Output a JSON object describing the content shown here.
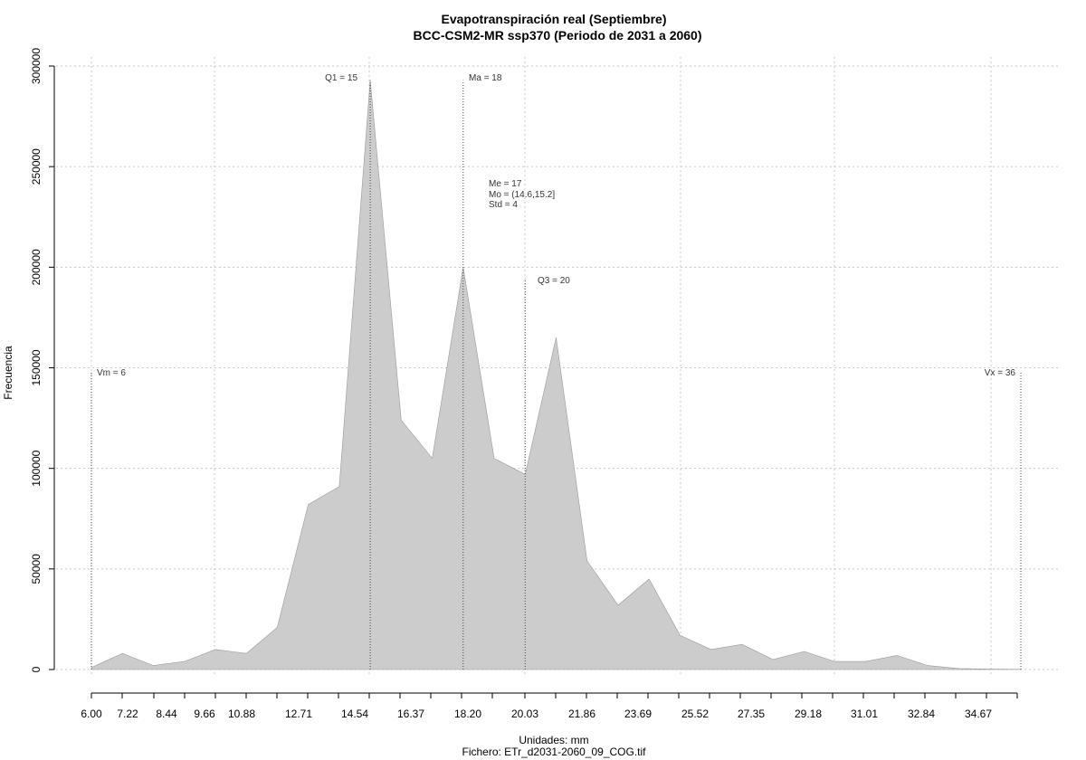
{
  "chart_data": {
    "type": "area",
    "title": "Evapotranspiración real (Septiembre)",
    "subtitle": "BCC-CSM2-MR ssp370 (Periodo de 2031 a 2060)",
    "xlabel": "Unidades: mm",
    "file_label": "Fichero: ETr_d2031-2060_09_COG.tif",
    "ylabel": "Frecuencia",
    "xlim": [
      6.0,
      36.0
    ],
    "ylim": [
      0,
      300000
    ],
    "fill_color": "#cccccc",
    "grid": true,
    "x_ticks": [
      "6.00",
      "7.22",
      "8.44",
      "9.66",
      "10.88",
      "12.71",
      "14.54",
      "16.37",
      "18.20",
      "20.03",
      "21.86",
      "23.69",
      "25.52",
      "27.35",
      "29.18",
      "31.01",
      "32.84",
      "34.67"
    ],
    "y_ticks": [
      "0",
      "50000",
      "100000",
      "150000",
      "200000",
      "250000",
      "300000"
    ],
    "x": [
      6.0,
      7.0,
      8.0,
      9.0,
      10.0,
      11.0,
      12.0,
      13.0,
      14.0,
      15.0,
      16.0,
      17.0,
      18.0,
      19.0,
      20.0,
      21.0,
      22.0,
      23.0,
      24.0,
      25.0,
      26.0,
      27.0,
      28.0,
      29.0,
      30.0,
      31.0,
      32.0,
      33.0,
      34.0,
      35.0,
      36.0
    ],
    "values": [
      1000,
      8000,
      2000,
      4000,
      10000,
      8000,
      21000,
      82000,
      91000,
      293000,
      124000,
      105000,
      200000,
      105000,
      97000,
      165000,
      54000,
      32000,
      45000,
      17000,
      10000,
      12500,
      5000,
      9000,
      4000,
      4000,
      7000,
      2000,
      500,
      200,
      100
    ],
    "annotations": {
      "vm": {
        "label": "Vm = 6",
        "x": 6.0,
        "y": 148000
      },
      "q1": {
        "label": "Q1 = 15",
        "x": 15.0,
        "y": 293000
      },
      "ma": {
        "label": "Ma = 18",
        "x": 18.0,
        "y": 293000
      },
      "q3": {
        "label": "Q3 = 20",
        "x": 20.0,
        "y": 194000
      },
      "vx": {
        "label": "Vx = 36",
        "x": 36.0,
        "y": 148000
      },
      "stats": [
        "Me = 17",
        "Mo = (14.6,15.2]",
        "Std = 4"
      ]
    }
  }
}
